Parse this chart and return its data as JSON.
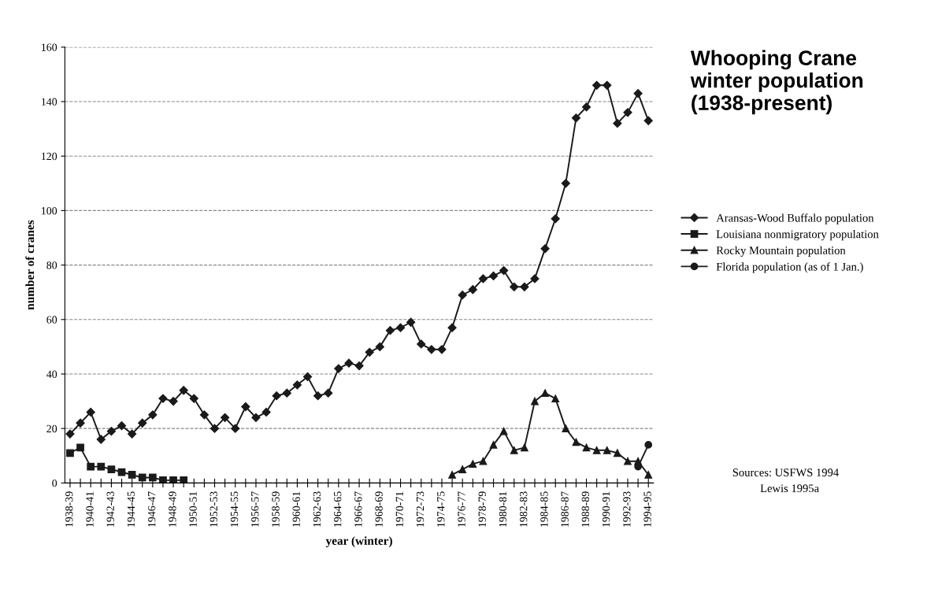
{
  "chart_data": {
    "type": "line",
    "title": "Whooping Crane\nwinter population\n(1938-present)",
    "xlabel": "year (winter)",
    "ylabel": "number of cranes",
    "categories": [
      "1938-39",
      null,
      "1940-41",
      null,
      "1942-43",
      null,
      "1944-45",
      null,
      "1946-47",
      null,
      "1948-49",
      null,
      "1950-51",
      null,
      "1952-53",
      null,
      "1954-55",
      null,
      "1956-57",
      null,
      "1958-59",
      null,
      "1960-61",
      null,
      "1962-63",
      null,
      "1964-65",
      null,
      "1966-67",
      null,
      "1968-69",
      null,
      "1970-71",
      null,
      "1972-73",
      null,
      "1974-75",
      null,
      "1976-77",
      null,
      "1978-79",
      null,
      "1980-81",
      null,
      "1982-83",
      null,
      "1984-85",
      null,
      "1986-87",
      null,
      "1988-89",
      null,
      "1990-91",
      null,
      "1992-93",
      null,
      "1994-95"
    ],
    "series": [
      {
        "name": "Aransas-Wood Buffalo population",
        "color": "#1a1a1a",
        "marker": "diamond",
        "values": [
          18,
          22,
          26,
          16,
          19,
          21,
          18,
          22,
          25,
          31,
          30,
          34,
          31,
          25,
          20,
          24,
          20,
          28,
          24,
          26,
          32,
          33,
          36,
          39,
          32,
          33,
          42,
          44,
          43,
          48,
          50,
          56,
          57,
          59,
          51,
          49,
          49,
          57,
          69,
          71,
          75,
          76,
          78,
          72,
          72,
          75,
          86,
          97,
          110,
          134,
          138,
          146,
          146,
          132,
          136,
          143,
          133
        ]
      },
      {
        "name": "Louisiana nonmigratory population",
        "color": "#1a1a1a",
        "marker": "square",
        "values": [
          11,
          13,
          6,
          6,
          5,
          4,
          3,
          2,
          2,
          1,
          1,
          1,
          null,
          null,
          null,
          null,
          null,
          null,
          null,
          null,
          null,
          null,
          null,
          null,
          null,
          null,
          null,
          null,
          null,
          null,
          null,
          null,
          null,
          null,
          null,
          null,
          null,
          null,
          null,
          null,
          null,
          null,
          null,
          null,
          null,
          null,
          null,
          null,
          null,
          null,
          null,
          null,
          null,
          null,
          null,
          null,
          null
        ]
      },
      {
        "name": "Rocky Mountain population",
        "color": "#1a1a1a",
        "marker": "triangle",
        "values": [
          null,
          null,
          null,
          null,
          null,
          null,
          null,
          null,
          null,
          null,
          null,
          null,
          null,
          null,
          null,
          null,
          null,
          null,
          null,
          null,
          null,
          null,
          null,
          null,
          null,
          null,
          null,
          null,
          null,
          null,
          null,
          null,
          null,
          null,
          null,
          null,
          null,
          3,
          5,
          7,
          8,
          14,
          19,
          12,
          13,
          30,
          33,
          31,
          20,
          15,
          13,
          12,
          12,
          11,
          8,
          8,
          3
        ]
      },
      {
        "name": "Florida population (as of 1 Jan.)",
        "color": "#1a1a1a",
        "marker": "circle",
        "values": [
          null,
          null,
          null,
          null,
          null,
          null,
          null,
          null,
          null,
          null,
          null,
          null,
          null,
          null,
          null,
          null,
          null,
          null,
          null,
          null,
          null,
          null,
          null,
          null,
          null,
          null,
          null,
          null,
          null,
          null,
          null,
          null,
          null,
          null,
          null,
          null,
          null,
          null,
          null,
          null,
          null,
          null,
          null,
          null,
          null,
          null,
          null,
          null,
          null,
          null,
          null,
          null,
          null,
          null,
          null,
          6,
          14
        ]
      }
    ],
    "ylim": [
      0,
      160
    ],
    "yticks": [
      0,
      20,
      40,
      60,
      80,
      100,
      120,
      140,
      160
    ],
    "grid": "y",
    "legend": "right",
    "line_style": "solid",
    "annotations": [
      "Sources: USFWS 1994",
      "Lewis 1995a"
    ]
  }
}
